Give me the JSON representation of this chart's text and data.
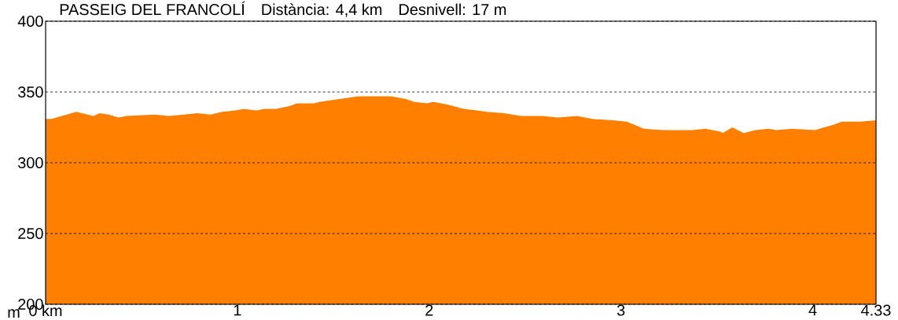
{
  "chart_data": {
    "type": "area",
    "title": "PASSEIG DEL FRANCOLÍ",
    "ylabel": "m",
    "annotations": [
      "Distància: 4,4 km",
      "Desnivell: 17 m"
    ],
    "x": [
      0,
      0.03,
      0.16,
      0.25,
      0.28,
      0.33,
      0.38,
      0.42,
      0.57,
      0.64,
      0.72,
      0.79,
      0.86,
      0.92,
      0.99,
      1.03,
      1.1,
      1.14,
      1.2,
      1.27,
      1.31,
      1.4,
      1.43,
      1.53,
      1.63,
      1.71,
      1.8,
      1.88,
      1.92,
      1.99,
      2.02,
      2.1,
      2.18,
      2.25,
      2.3,
      2.39,
      2.48,
      2.59,
      2.67,
      2.77,
      2.85,
      2.96,
      3.03,
      3.12,
      3.22,
      3.34,
      3.37,
      3.44,
      3.52,
      3.53,
      3.58,
      3.64,
      3.7,
      3.77,
      3.81,
      3.89,
      4.01,
      4.11,
      4.15,
      4.25,
      4.33
    ],
    "series": [
      {
        "color": "#ff8000",
        "values": [
          331,
          331,
          336,
          333,
          335,
          334,
          332,
          333,
          334,
          333,
          334,
          335,
          334,
          336,
          337,
          338,
          337,
          338,
          338,
          340,
          342,
          342,
          343,
          345,
          347,
          347,
          347,
          345,
          343,
          342,
          343,
          341,
          338,
          337,
          336,
          335,
          333,
          333,
          332,
          333,
          331,
          330,
          329,
          324,
          323,
          323,
          323,
          324,
          322,
          321,
          325,
          321,
          323,
          324,
          323,
          324,
          323,
          327,
          329,
          329,
          330
        ]
      }
    ],
    "xlim": [
      0,
      4.33
    ],
    "ylim": [
      200,
      400
    ],
    "xticks": [
      {
        "value": 0,
        "label": "0 km"
      },
      1,
      2,
      3,
      4,
      4.33
    ],
    "yticks": [
      200,
      250,
      300,
      350,
      400
    ],
    "grid": "y"
  }
}
